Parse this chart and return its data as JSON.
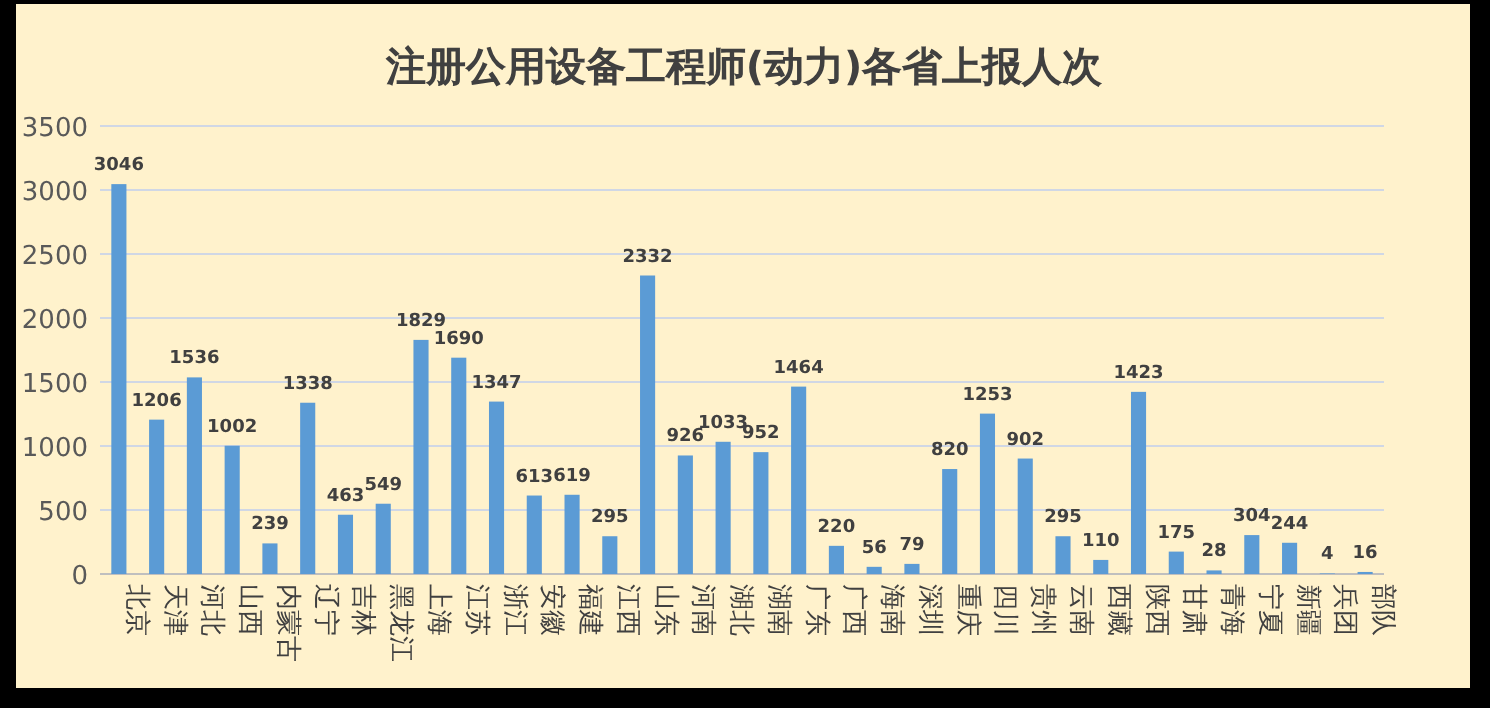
{
  "chart_data": {
    "type": "bar",
    "title": "注册公用设备工程师(动力)各省上报人次",
    "categories": [
      "北京",
      "天津",
      "河北",
      "山西",
      "内蒙古",
      "辽宁",
      "吉林",
      "黑龙江",
      "上海",
      "江苏",
      "浙江",
      "安徽",
      "福建",
      "江西",
      "山东",
      "河南",
      "湖北",
      "湖南",
      "广东",
      "广西",
      "海南",
      "深圳",
      "重庆",
      "四川",
      "贵州",
      "云南",
      "西藏",
      "陕西",
      "甘肃",
      "青海",
      "宁夏",
      "新疆",
      "兵团",
      "部队"
    ],
    "values": [
      3046,
      1206,
      1536,
      1002,
      239,
      1338,
      463,
      549,
      1829,
      1690,
      1347,
      613,
      619,
      295,
      2332,
      926,
      1033,
      952,
      1464,
      220,
      56,
      79,
      820,
      1253,
      902,
      295,
      110,
      1423,
      175,
      28,
      304,
      244,
      4,
      16
    ],
    "color": "#5b9bd5",
    "ylim": [
      0,
      3500
    ],
    "yticks": [
      0,
      500,
      1000,
      1500,
      2000,
      2500,
      3000,
      3500
    ],
    "grid": "y",
    "data_labels": true
  }
}
